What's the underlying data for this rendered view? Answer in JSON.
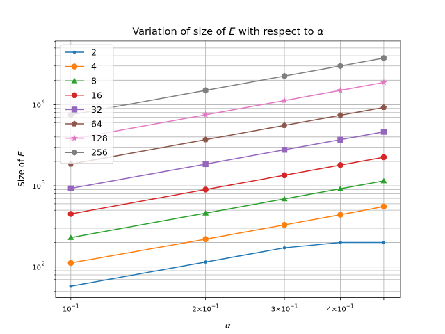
{
  "chart_data": {
    "type": "line",
    "title": "Variation of size of E with respect to α",
    "title_parts": {
      "pre": "Variation of size of ",
      "var": "E",
      "post": " with respect to ",
      "sym": "α"
    },
    "xlabel": "α",
    "ylabel": "Size of E",
    "ylabel_parts": {
      "pre": "Size of ",
      "var": "E"
    },
    "xscale": "log",
    "yscale": "log",
    "xlim": [
      0.0925,
      0.545
    ],
    "ylim": [
      42,
      62000
    ],
    "grid": true,
    "legend_position": "top-left",
    "x_ticks": [
      {
        "value": 0.1,
        "mantissa": "",
        "exp": "−1"
      },
      {
        "value": 0.2,
        "mantissa": "2×10",
        "exp": "−1"
      },
      {
        "value": 0.3,
        "mantissa": "3×10",
        "exp": "−1"
      },
      {
        "value": 0.4,
        "mantissa": "4×10",
        "exp": "−1"
      }
    ],
    "x_minor_ticks": [
      0.5
    ],
    "y_ticks": [
      {
        "value": 100,
        "exp": "2"
      },
      {
        "value": 1000,
        "exp": "3"
      },
      {
        "value": 10000,
        "exp": "4"
      }
    ],
    "x": [
      0.1,
      0.2,
      0.3,
      0.4,
      0.5
    ],
    "series": [
      {
        "name": "2",
        "color": "#1f77b4",
        "marker": "point",
        "values": [
          58,
          115,
          172,
          200,
          200
        ]
      },
      {
        "name": "4",
        "color": "#ff7f0e",
        "marker": "circle",
        "values": [
          112,
          220,
          330,
          440,
          555
        ]
      },
      {
        "name": "8",
        "color": "#2ca02c",
        "marker": "triangle",
        "values": [
          230,
          460,
          690,
          920,
          1150
        ]
      },
      {
        "name": "16",
        "color": "#d62728",
        "marker": "circle",
        "values": [
          450,
          900,
          1350,
          1800,
          2250
        ]
      },
      {
        "name": "32",
        "color": "#9467bd",
        "marker": "square",
        "values": [
          930,
          1850,
          2780,
          3700,
          4620
        ]
      },
      {
        "name": "64",
        "color": "#8c564b",
        "marker": "pentagon",
        "values": [
          1850,
          3700,
          5550,
          7400,
          9250
        ]
      },
      {
        "name": "128",
        "color": "#e377c2",
        "marker": "star",
        "values": [
          3750,
          7500,
          11250,
          15000,
          18800
        ]
      },
      {
        "name": "256",
        "color": "#7f7f7f",
        "marker": "hexagon",
        "values": [
          7500,
          15000,
          22500,
          30000,
          37500
        ]
      }
    ]
  }
}
